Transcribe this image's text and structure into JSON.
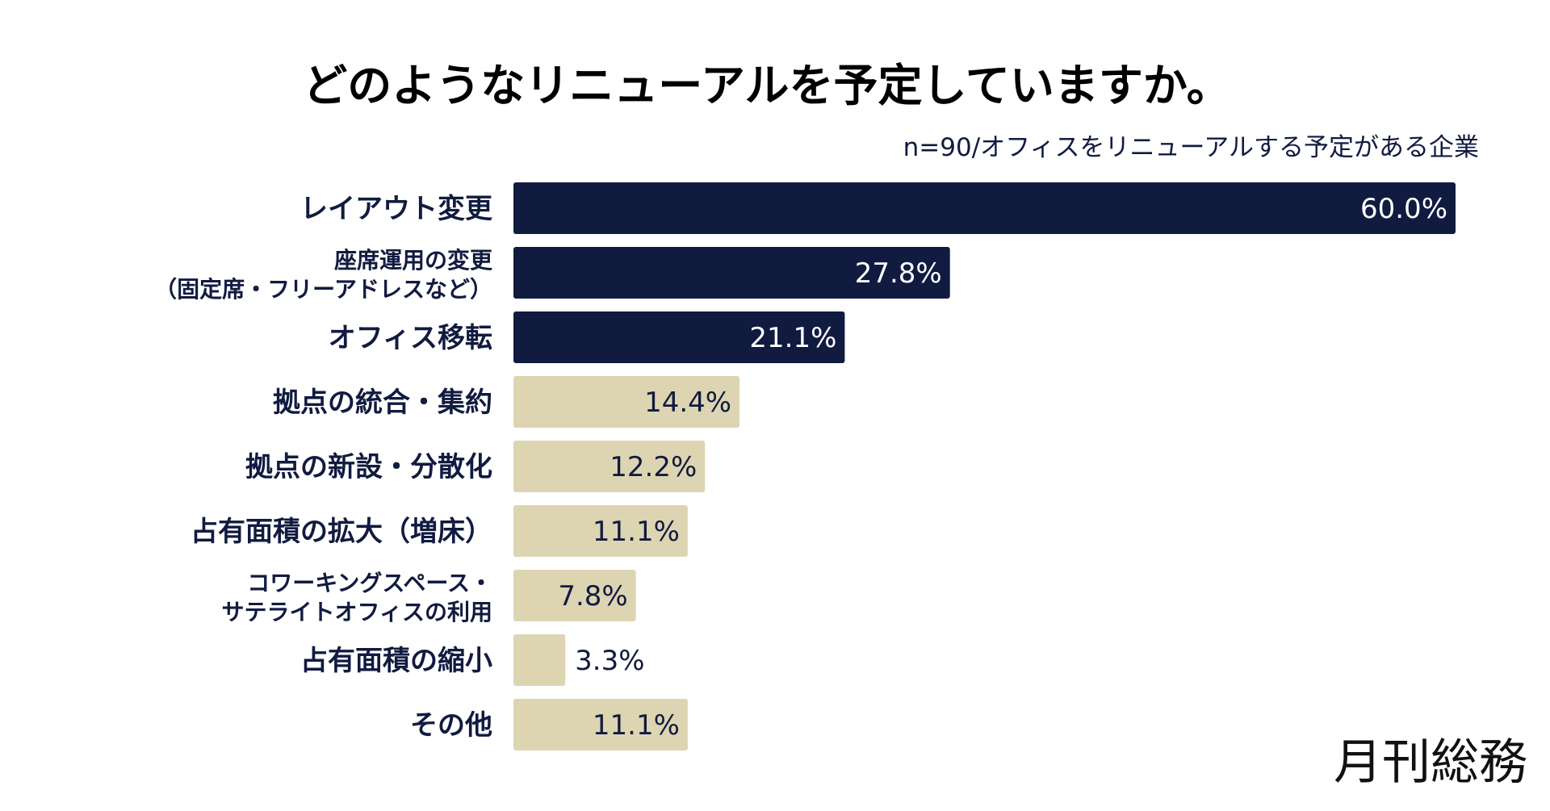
{
  "chart_data": {
    "type": "bar",
    "orientation": "horizontal",
    "title": "どのようなリニューアルを予定していますか。",
    "subtitle": "n=90/オフィスをリニューアルする予定がある企業",
    "categories": [
      [
        "レイアウト変更"
      ],
      [
        "座席運用の変更",
        "（固定席・フリーアドレスなど）"
      ],
      [
        "オフィス移転"
      ],
      [
        "拠点の統合・集約"
      ],
      [
        "拠点の新設・分散化"
      ],
      [
        "占有面積の拡大（増床）"
      ],
      [
        "コワーキングスペース・",
        "サテライトオフィスの利用"
      ],
      [
        "占有面積の縮小"
      ],
      [
        "その他"
      ]
    ],
    "values": [
      60.0,
      27.8,
      21.1,
      14.4,
      12.2,
      11.1,
      7.8,
      3.3,
      11.1
    ],
    "value_labels": [
      "60.0%",
      "27.8%",
      "21.1%",
      "14.4%",
      "12.2%",
      "11.1%",
      "7.8%",
      "3.3%",
      "11.1%"
    ],
    "highlight_count": 3,
    "xlim": [
      0,
      60
    ],
    "xlabel": "",
    "ylabel": "",
    "grid": false,
    "legend": "none",
    "colors": {
      "highlight_bar": "#111b40",
      "other_bar": "#ddd5b1",
      "label_text": "#111b40",
      "highlight_value_text": "#ffffff",
      "other_value_text": "#111b40",
      "title_text": "#000000"
    }
  },
  "brand": {
    "logo_text": "月刊総務"
  }
}
